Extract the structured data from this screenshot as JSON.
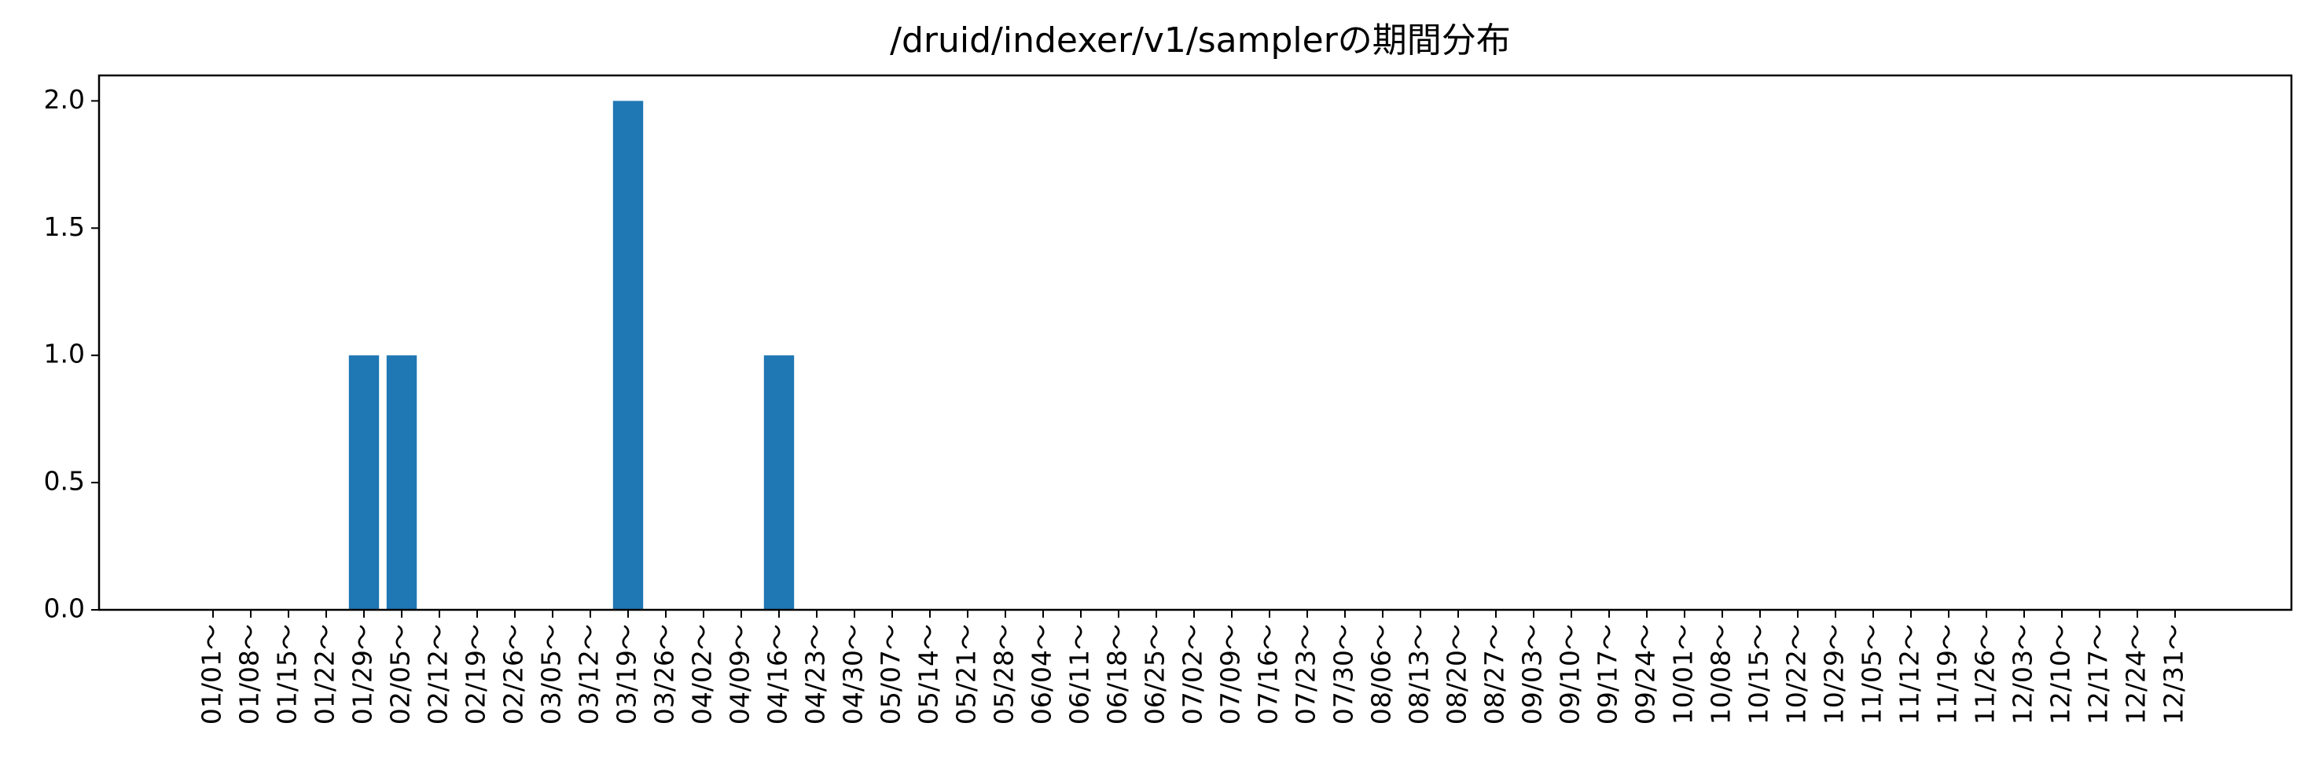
{
  "chart_data": {
    "type": "bar",
    "title": "/druid/indexer/v1/samplerの期間分布",
    "xlabel": "",
    "ylabel": "",
    "ylim": [
      0,
      2.1
    ],
    "yticks": [
      "0.0",
      "0.5",
      "1.0",
      "1.5",
      "2.0"
    ],
    "bar_color": "#1f77b4",
    "grid": false,
    "categories": [
      "01/01～",
      "01/08～",
      "01/15～",
      "01/22～",
      "01/29～",
      "02/05～",
      "02/12～",
      "02/19～",
      "02/26～",
      "03/05～",
      "03/12～",
      "03/19～",
      "03/26～",
      "04/02～",
      "04/09～",
      "04/16～",
      "04/23～",
      "04/30～",
      "05/07～",
      "05/14～",
      "05/21～",
      "05/28～",
      "06/04～",
      "06/11～",
      "06/18～",
      "06/25～",
      "07/02～",
      "07/09～",
      "07/16～",
      "07/23～",
      "07/30～",
      "08/06～",
      "08/13～",
      "08/20～",
      "08/27～",
      "09/03～",
      "09/10～",
      "09/17～",
      "09/24～",
      "10/01～",
      "10/08～",
      "10/15～",
      "10/22～",
      "10/29～",
      "11/05～",
      "11/12～",
      "11/19～",
      "11/26～",
      "12/03～",
      "12/10～",
      "12/17～",
      "12/24～",
      "12/31～"
    ],
    "values": [
      0,
      0,
      0,
      0,
      1,
      1,
      0,
      0,
      0,
      0,
      0,
      2,
      0,
      0,
      0,
      1,
      0,
      0,
      0,
      0,
      0,
      0,
      0,
      0,
      0,
      0,
      0,
      0,
      0,
      0,
      0,
      0,
      0,
      0,
      0,
      0,
      0,
      0,
      0,
      0,
      0,
      0,
      0,
      0,
      0,
      0,
      0,
      0,
      0,
      0,
      0,
      0,
      0
    ]
  }
}
